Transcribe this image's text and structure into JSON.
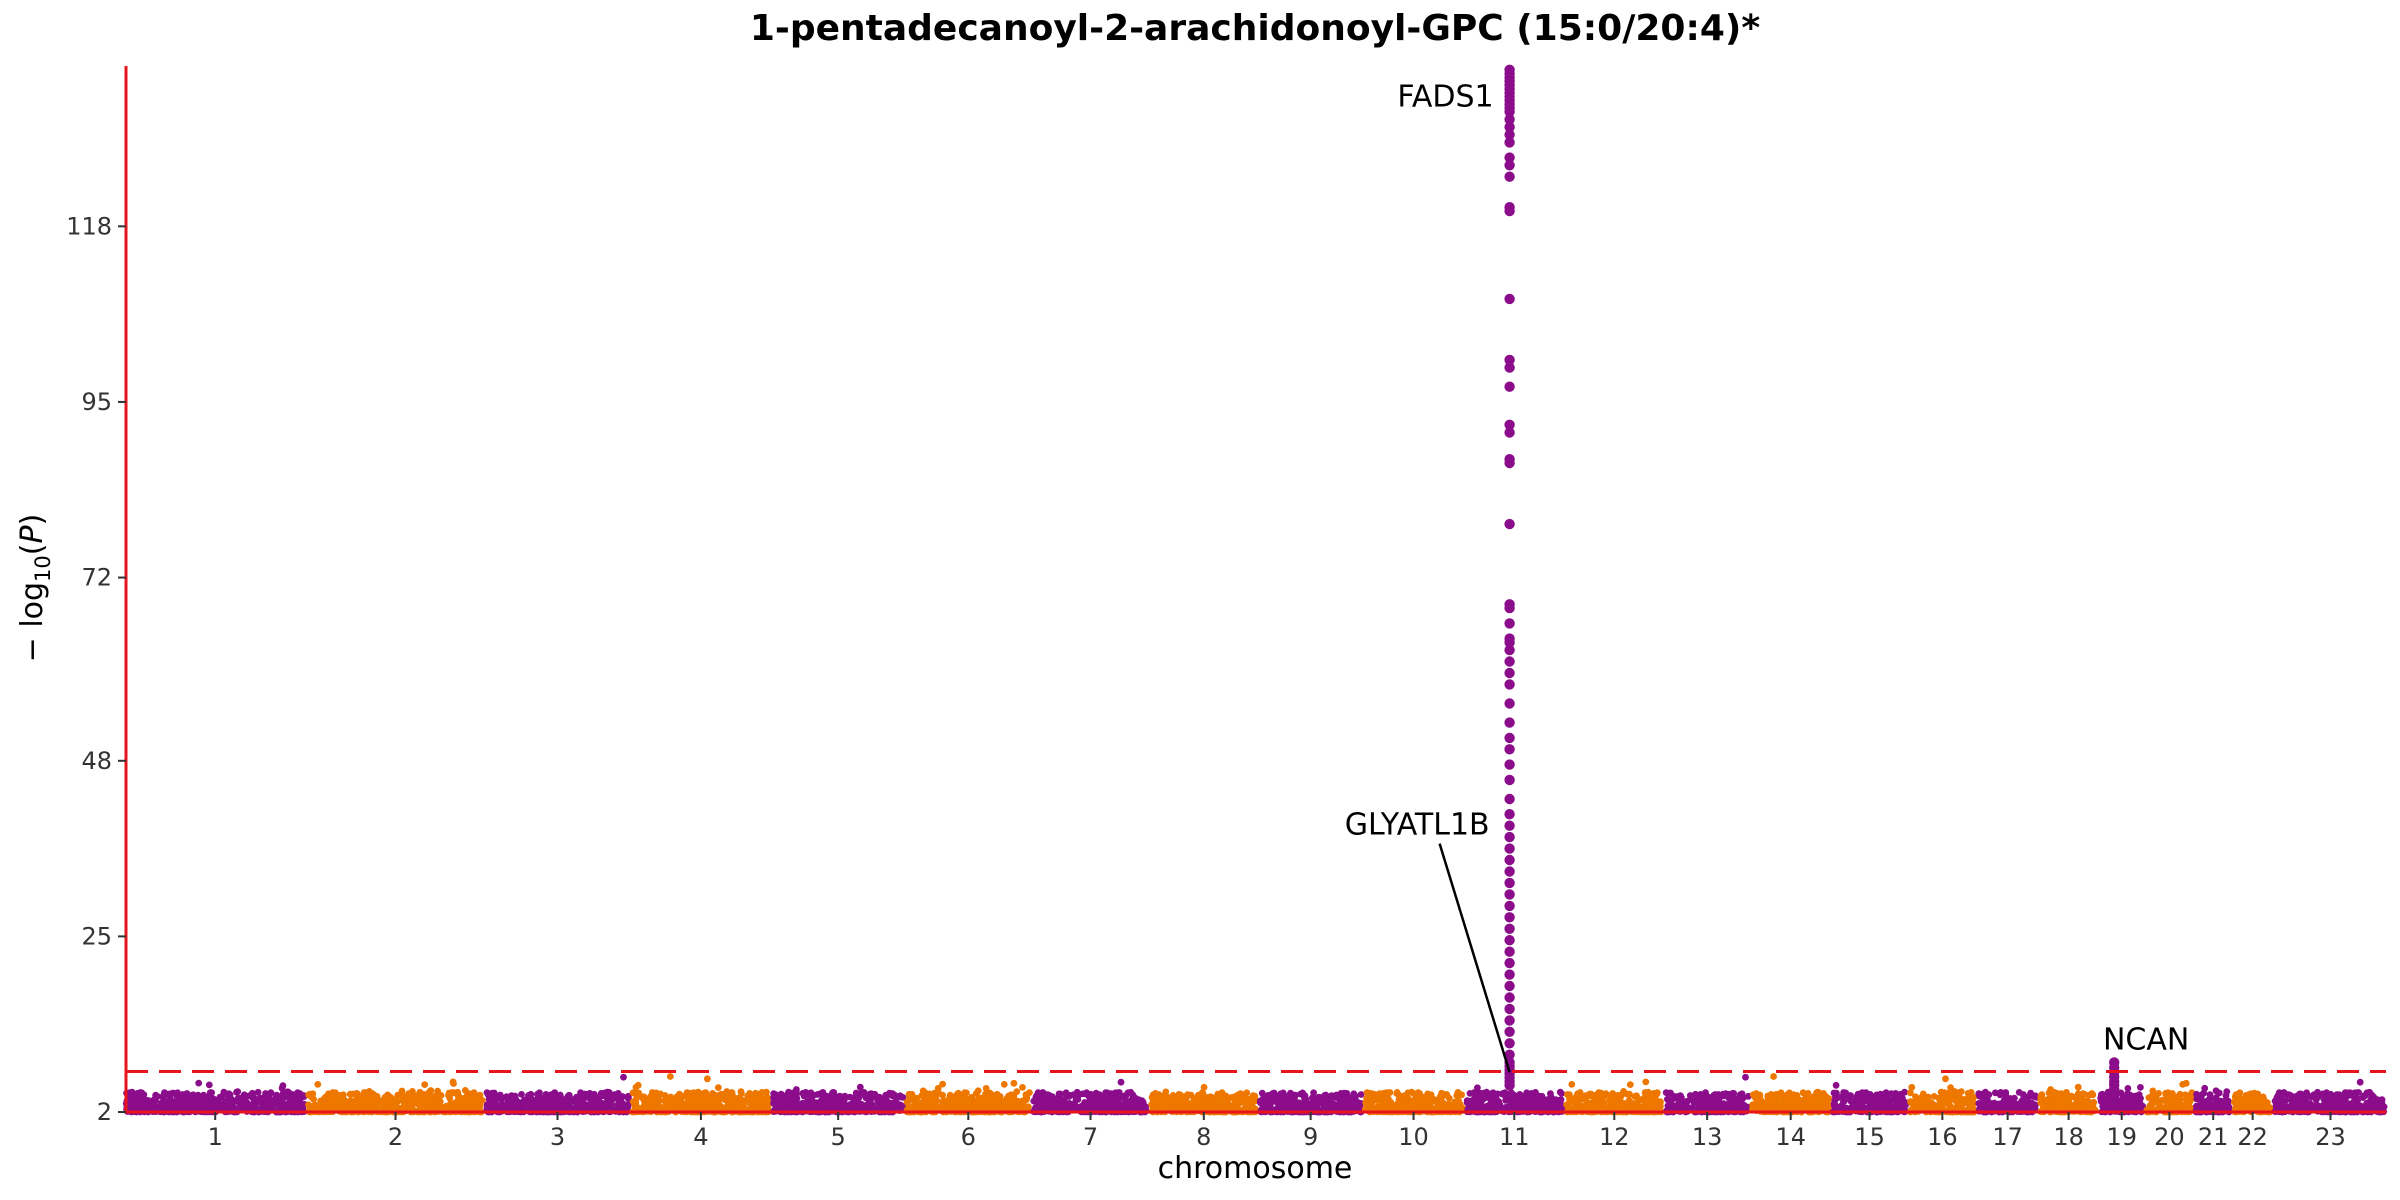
{
  "chart_data": {
    "type": "scatter",
    "title": "1-pentadecanoyl-2-arachidonoyl-GPC (15:0/20:4)*",
    "xlabel": "chromosome",
    "ylabel_base": "− log",
    "ylabel_sub": "10",
    "ylabel_var": "P",
    "yticks": [
      2,
      25,
      48,
      72,
      95,
      118
    ],
    "ylim": [
      2,
      139
    ],
    "threshold": 7.3,
    "colors": {
      "odd": "#8B0D8B",
      "even": "#EE7700",
      "axis": "#E8141C",
      "threshold": "#E8141C"
    },
    "chromosomes": [
      {
        "chr": "1",
        "length": 249
      },
      {
        "chr": "2",
        "length": 243
      },
      {
        "chr": "3",
        "length": 198
      },
      {
        "chr": "4",
        "length": 191
      },
      {
        "chr": "5",
        "length": 181
      },
      {
        "chr": "6",
        "length": 171
      },
      {
        "chr": "7",
        "length": 159
      },
      {
        "chr": "8",
        "length": 146
      },
      {
        "chr": "9",
        "length": 141
      },
      {
        "chr": "10",
        "length": 135
      },
      {
        "chr": "11",
        "length": 135
      },
      {
        "chr": "12",
        "length": 133
      },
      {
        "chr": "13",
        "length": 115
      },
      {
        "chr": "14",
        "length": 107
      },
      {
        "chr": "15",
        "length": 102
      },
      {
        "chr": "16",
        "length": 90
      },
      {
        "chr": "17",
        "length": 81
      },
      {
        "chr": "18",
        "length": 78
      },
      {
        "chr": "19",
        "length": 59
      },
      {
        "chr": "20",
        "length": 63
      },
      {
        "chr": "21",
        "length": 48
      },
      {
        "chr": "22",
        "length": 51
      },
      {
        "chr": "23",
        "length": 155
      }
    ],
    "peaks": [
      {
        "chr": "11",
        "pos": 61,
        "values": [
          138.5,
          138,
          137.5,
          137,
          136.5,
          136,
          135.5,
          135,
          134.5,
          134,
          133.5,
          133,
          132,
          131,
          130,
          129,
          127,
          126,
          124.5,
          120.5,
          120,
          108.5,
          100.5,
          99.5,
          97,
          92,
          91,
          87.5,
          87,
          79,
          68.5,
          68,
          66,
          64,
          63.5,
          62.5,
          61,
          59.5,
          58,
          55.5,
          53,
          51,
          49.5,
          47.5,
          45.5,
          43,
          41,
          39.5,
          38,
          36.5,
          35,
          33.5,
          32,
          30.5,
          29,
          27.5,
          26,
          24.5,
          23,
          21.5,
          20,
          18.5,
          17,
          15.5,
          14,
          12.5,
          11,
          9.5,
          8.5,
          8,
          7.5,
          7,
          6.5,
          6,
          5.5
        ]
      },
      {
        "chr": "19",
        "pos": 19,
        "values": [
          8.5,
          7.8,
          7.2,
          6.6,
          6.0,
          5.5,
          5.0,
          4.6,
          4.2
        ]
      }
    ],
    "annotations": [
      {
        "label": "FADS1",
        "chr": "11",
        "pos": 61,
        "y": 135
      },
      {
        "label": "GLYATL1B",
        "chr": "11",
        "pos": 61,
        "y": 7.2
      },
      {
        "label": "NCAN",
        "chr": "19",
        "pos": 19,
        "y": 8.6
      }
    ]
  }
}
